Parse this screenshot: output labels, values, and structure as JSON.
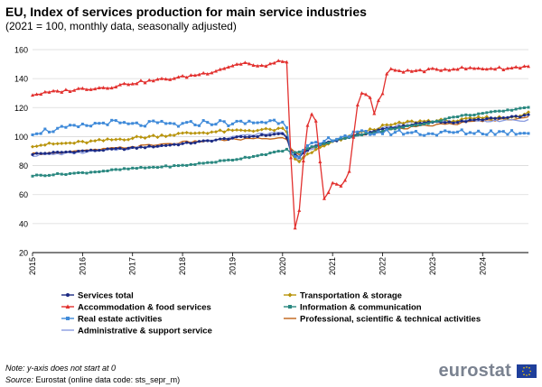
{
  "header": {
    "title": "EU, Index of services production for main service industries",
    "subtitle": "(2021 = 100, monthly data, seasonally adjusted)"
  },
  "notes": {
    "note_line": "Note: y-axis does not start at 0",
    "source_label": "Source:",
    "source_text": " Eurostat (online data code: sts_sepr_m)"
  },
  "logo": {
    "text": "eurostat",
    "flag_icon": "eu-flag-icon"
  },
  "chart_data": {
    "type": "line",
    "title": "EU, Index of services production for main service industries",
    "subtitle": "(2021 = 100, monthly data, seasonally adjusted)",
    "xlabel": "",
    "ylabel": "",
    "ylim": [
      20,
      160
    ],
    "yticks": [
      20,
      40,
      60,
      80,
      100,
      120,
      140,
      160
    ],
    "xticks": [
      "2015",
      "2016",
      "2017",
      "2018",
      "2019",
      "2020",
      "2021",
      "2022",
      "2023",
      "2024"
    ],
    "x_start": "2015-01",
    "x_end": "2024-12",
    "grid": "horizontal",
    "legend_position": "bottom",
    "series_knots_note": "monthly values, one knot per quarter: [year_index from 2015, value]",
    "series": [
      {
        "name": "Services total",
        "color": "#1b2a83",
        "marker": "circle",
        "knots": [
          [
            0,
            88
          ],
          [
            1,
            90
          ],
          [
            2,
            92
          ],
          [
            3,
            95
          ],
          [
            4,
            99
          ],
          [
            5,
            102
          ],
          [
            5.08,
            100
          ],
          [
            5.17,
            89
          ],
          [
            5.33,
            86
          ],
          [
            5.5,
            91
          ],
          [
            5.75,
            95
          ],
          [
            6,
            97
          ],
          [
            6.5,
            101
          ],
          [
            7,
            105
          ],
          [
            7.5,
            108
          ],
          [
            8,
            110
          ],
          [
            8.5,
            110
          ],
          [
            9,
            112
          ],
          [
            9.5,
            113
          ],
          [
            10,
            115
          ]
        ]
      },
      {
        "name": "Transportation & storage",
        "color": "#b8940c",
        "marker": "diamond",
        "knots": [
          [
            0,
            94
          ],
          [
            1,
            96
          ],
          [
            2,
            99
          ],
          [
            3,
            102
          ],
          [
            4,
            104
          ],
          [
            5,
            105
          ],
          [
            5.08,
            103
          ],
          [
            5.17,
            88
          ],
          [
            5.33,
            82
          ],
          [
            5.5,
            88
          ],
          [
            5.75,
            92
          ],
          [
            6,
            96
          ],
          [
            6.5,
            102
          ],
          [
            7,
            107
          ],
          [
            7.5,
            110
          ],
          [
            8,
            111
          ],
          [
            8.5,
            111
          ],
          [
            9,
            113
          ],
          [
            9.5,
            113
          ],
          [
            10,
            117
          ]
        ]
      },
      {
        "name": "Accommodation & food services",
        "color": "#e2302e",
        "marker": "triangle",
        "knots": [
          [
            0,
            129
          ],
          [
            0.5,
            131
          ],
          [
            1,
            133
          ],
          [
            1.5,
            134
          ],
          [
            2,
            137
          ],
          [
            2.5,
            139
          ],
          [
            3,
            141
          ],
          [
            3.5,
            144
          ],
          [
            4,
            149
          ],
          [
            4.25,
            151
          ],
          [
            4.5,
            148
          ],
          [
            5,
            152
          ],
          [
            5.08,
            155
          ],
          [
            5.17,
            82
          ],
          [
            5.25,
            36
          ],
          [
            5.33,
            47
          ],
          [
            5.42,
            84
          ],
          [
            5.5,
            108
          ],
          [
            5.58,
            115
          ],
          [
            5.67,
            110
          ],
          [
            5.75,
            82
          ],
          [
            5.83,
            58
          ],
          [
            5.92,
            62
          ],
          [
            6,
            68
          ],
          [
            6.17,
            65
          ],
          [
            6.33,
            75
          ],
          [
            6.5,
            122
          ],
          [
            6.58,
            130
          ],
          [
            6.67,
            130
          ],
          [
            6.75,
            127
          ],
          [
            6.83,
            115
          ],
          [
            6.92,
            125
          ],
          [
            7,
            130
          ],
          [
            7.08,
            143
          ],
          [
            7.17,
            146
          ],
          [
            7.5,
            145
          ],
          [
            8,
            146
          ],
          [
            8.5,
            147
          ],
          [
            9,
            147
          ],
          [
            9.5,
            147
          ],
          [
            10,
            149
          ]
        ]
      },
      {
        "name": "Information & communication",
        "color": "#2a8880",
        "marker": "square",
        "knots": [
          [
            0,
            73
          ],
          [
            1,
            75
          ],
          [
            2,
            78
          ],
          [
            3,
            80
          ],
          [
            4,
            84
          ],
          [
            5,
            90
          ],
          [
            5.08,
            91
          ],
          [
            5.17,
            89
          ],
          [
            5.33,
            89
          ],
          [
            5.5,
            92
          ],
          [
            5.75,
            94
          ],
          [
            6,
            97
          ],
          [
            6.5,
            101
          ],
          [
            7,
            104
          ],
          [
            7.5,
            107
          ],
          [
            8,
            110
          ],
          [
            8.5,
            114
          ],
          [
            9,
            116
          ],
          [
            9.5,
            118
          ],
          [
            10,
            121
          ]
        ]
      },
      {
        "name": "Real estate activities",
        "color": "#3f8ad9",
        "marker": "square",
        "knots": [
          [
            0,
            103
          ],
          [
            0.5,
            105
          ],
          [
            1,
            107
          ],
          [
            1.5,
            110
          ],
          [
            2,
            108
          ],
          [
            2.5,
            109
          ],
          [
            3,
            108
          ],
          [
            3.5,
            110
          ],
          [
            4,
            109
          ],
          [
            4.5,
            110
          ],
          [
            5,
            111
          ],
          [
            5.08,
            108
          ],
          [
            5.17,
            90
          ],
          [
            5.33,
            85
          ],
          [
            5.5,
            93
          ],
          [
            5.75,
            95
          ],
          [
            6,
            99
          ],
          [
            6.5,
            102
          ],
          [
            7,
            103
          ],
          [
            7.5,
            103
          ],
          [
            8,
            102
          ],
          [
            8.5,
            103
          ],
          [
            9,
            103
          ],
          [
            9.5,
            103
          ],
          [
            10,
            103
          ]
        ]
      },
      {
        "name": "Professional, scientific & technical activities",
        "color": "#c06216",
        "marker": "line",
        "knots": [
          [
            0,
            88
          ],
          [
            1,
            90
          ],
          [
            2,
            93
          ],
          [
            3,
            96
          ],
          [
            4,
            98
          ],
          [
            5,
            99
          ],
          [
            5.08,
            98
          ],
          [
            5.17,
            91
          ],
          [
            5.33,
            88
          ],
          [
            5.5,
            91
          ],
          [
            5.75,
            94
          ],
          [
            6,
            97
          ],
          [
            6.5,
            101
          ],
          [
            7,
            104
          ],
          [
            7.5,
            106
          ],
          [
            8,
            108
          ],
          [
            8.5,
            109
          ],
          [
            9,
            111
          ],
          [
            9.5,
            112
          ],
          [
            10,
            114
          ]
        ]
      },
      {
        "name": "Administrative & support service",
        "color": "#8a9ce0",
        "marker": "line",
        "knots": [
          [
            0,
            87
          ],
          [
            1,
            89
          ],
          [
            2,
            92
          ],
          [
            3,
            95
          ],
          [
            4,
            100
          ],
          [
            5,
            103
          ],
          [
            5.08,
            101
          ],
          [
            5.17,
            88
          ],
          [
            5.33,
            84
          ],
          [
            5.5,
            90
          ],
          [
            5.75,
            94
          ],
          [
            6,
            97
          ],
          [
            6.5,
            101
          ],
          [
            7,
            106
          ],
          [
            7.5,
            109
          ],
          [
            8,
            110
          ],
          [
            8.5,
            111
          ],
          [
            9,
            111
          ],
          [
            9.5,
            111
          ],
          [
            10,
            111
          ]
        ]
      }
    ]
  }
}
